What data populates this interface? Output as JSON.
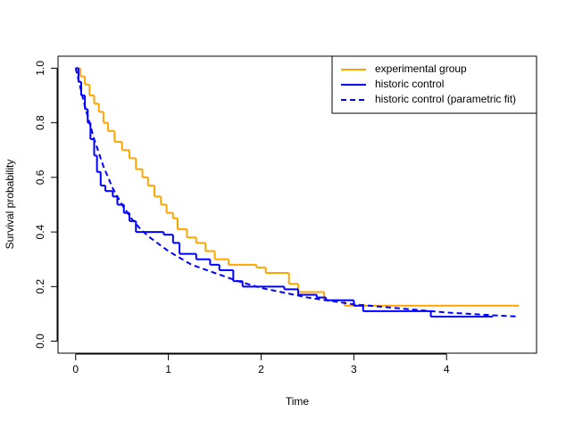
{
  "chart_data": {
    "type": "line",
    "xlabel": "Time",
    "ylabel": "Survival probability",
    "xlim": [
      -0.19,
      4.97
    ],
    "ylim": [
      -0.044,
      1.044
    ],
    "xticks": [
      0,
      1,
      2,
      3,
      4
    ],
    "yticks": [
      {
        "value": 0,
        "label": "0.0"
      },
      0.2,
      0.4,
      0.6,
      0.8,
      {
        "value": 1,
        "label": "1.0"
      }
    ],
    "legend": "top-right",
    "series": [
      {
        "name": "experimental group",
        "color": "#ffa500",
        "linestyle": "solid",
        "drawstyle": "steps",
        "x": [
          0,
          0.05,
          0.1,
          0.15,
          0.2,
          0.25,
          0.3,
          0.35,
          0.42,
          0.5,
          0.58,
          0.65,
          0.72,
          0.78,
          0.85,
          0.92,
          0.98,
          1.05,
          1.1,
          1.2,
          1.3,
          1.4,
          1.5,
          1.65,
          1.95,
          2.05,
          2.3,
          2.4,
          2.68,
          2.9,
          4.78
        ],
        "values": [
          1.0,
          0.97,
          0.94,
          0.9,
          0.87,
          0.84,
          0.8,
          0.77,
          0.73,
          0.7,
          0.67,
          0.63,
          0.6,
          0.57,
          0.53,
          0.5,
          0.47,
          0.45,
          0.41,
          0.38,
          0.36,
          0.33,
          0.3,
          0.28,
          0.27,
          0.25,
          0.21,
          0.18,
          0.15,
          0.13,
          0.13
        ]
      },
      {
        "name": "historic control",
        "color": "#0000ff",
        "linestyle": "solid",
        "drawstyle": "steps",
        "x": [
          0,
          0.03,
          0.06,
          0.1,
          0.13,
          0.16,
          0.2,
          0.23,
          0.27,
          0.32,
          0.4,
          0.45,
          0.52,
          0.58,
          0.65,
          0.95,
          1.05,
          1.12,
          1.3,
          1.45,
          1.55,
          1.7,
          1.8,
          2.25,
          2.4,
          2.6,
          2.7,
          3.0,
          3.1,
          3.83,
          4.5
        ],
        "values": [
          1.0,
          0.95,
          0.9,
          0.85,
          0.8,
          0.74,
          0.68,
          0.62,
          0.57,
          0.55,
          0.53,
          0.5,
          0.47,
          0.44,
          0.4,
          0.39,
          0.36,
          0.32,
          0.3,
          0.28,
          0.26,
          0.22,
          0.2,
          0.19,
          0.17,
          0.16,
          0.15,
          0.13,
          0.11,
          0.09,
          0.09
        ]
      },
      {
        "name": "historic control (parametric fit)",
        "color": "#0000ff",
        "linestyle": "dashed",
        "drawstyle": "default",
        "x": [
          0,
          0.1,
          0.2,
          0.3,
          0.4,
          0.5,
          0.6,
          0.7,
          0.8,
          1.0,
          1.25,
          1.5,
          1.75,
          2.0,
          2.5,
          3.0,
          3.5,
          4.0,
          4.5,
          4.78
        ],
        "values": [
          1.0,
          0.86,
          0.74,
          0.64,
          0.56,
          0.5,
          0.45,
          0.41,
          0.38,
          0.33,
          0.28,
          0.25,
          0.22,
          0.195,
          0.16,
          0.135,
          0.12,
          0.105,
          0.095,
          0.09
        ]
      }
    ]
  }
}
